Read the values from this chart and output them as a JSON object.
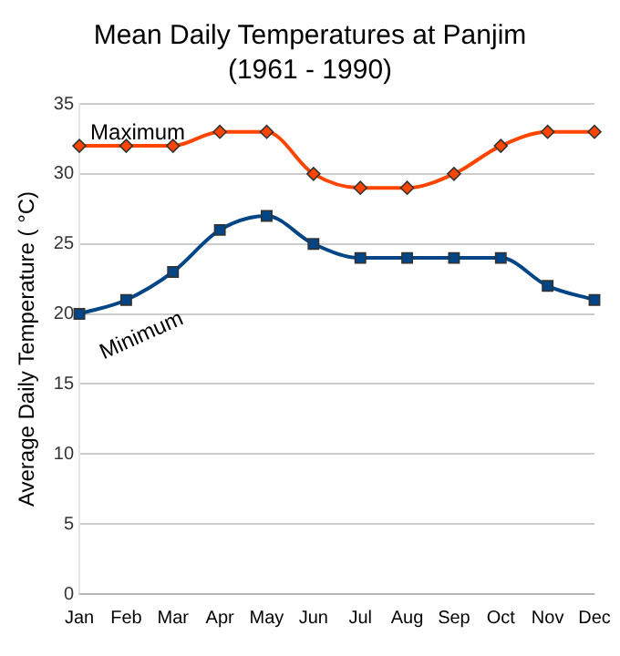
{
  "chart_data": {
    "type": "line",
    "title": "Mean Daily Temperatures at Panjim\n(1961 - 1990)",
    "ylabel": "Average Daily Temperature ( °C)",
    "categories": [
      "Jan",
      "Feb",
      "Mar",
      "Apr",
      "May",
      "Jun",
      "Jul",
      "Aug",
      "Sep",
      "Oct",
      "Nov",
      "Dec"
    ],
    "series": [
      {
        "name": "Maximum",
        "color": "#ff4500",
        "marker": "diamond",
        "values": [
          32,
          32,
          32,
          33,
          33,
          30,
          29,
          29,
          30,
          32,
          33,
          33
        ]
      },
      {
        "name": "Minimum",
        "color": "#004586",
        "marker": "square",
        "values": [
          20,
          21,
          23,
          26,
          27,
          25,
          24,
          24,
          24,
          24,
          22,
          21
        ]
      }
    ],
    "ylim": [
      0,
      35
    ],
    "yticks": [
      0,
      5,
      10,
      15,
      20,
      25,
      30,
      35
    ],
    "grid": "y",
    "legend": false
  }
}
